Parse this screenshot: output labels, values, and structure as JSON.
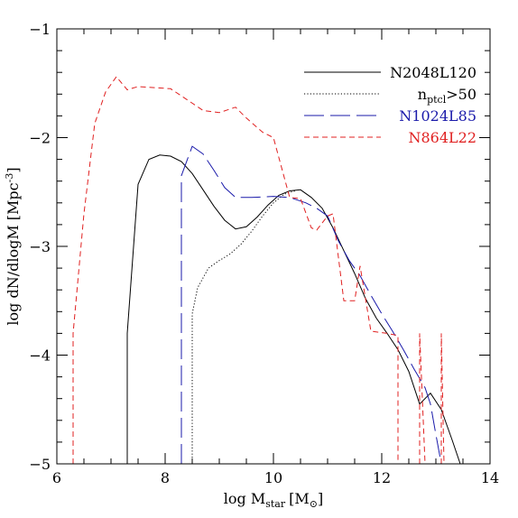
{
  "chart_data": {
    "type": "line",
    "title": "",
    "xlabel": "log M",
    "xlabel_sub": "star",
    "xlabel_unit_open": "[M",
    "xlabel_unit_sub": "⊙",
    "xlabel_unit_close": "]",
    "ylabel": "log dN/dlogM [Mpc",
    "ylabel_sup": "-3",
    "ylabel_close": "]",
    "xlim": [
      6,
      14
    ],
    "ylim": [
      -5,
      -1
    ],
    "xticks": [
      6,
      8,
      10,
      12,
      14
    ],
    "yticks": [
      -1,
      -2,
      -3,
      -4,
      -5
    ],
    "xtick_labels": [
      "6",
      "8",
      "10",
      "12",
      "14"
    ],
    "ytick_labels": [
      "−1",
      "−2",
      "−3",
      "−4",
      "−5"
    ],
    "grid": false,
    "legend_placement": "top-right",
    "legend": [
      {
        "label": "N2048L120",
        "label_sub": "",
        "label_tail": "",
        "color": "#000000",
        "dash": "solid"
      },
      {
        "label": "n",
        "label_sub": "ptcl",
        "label_tail": ">50",
        "color": "#000000",
        "dash": "dotted"
      },
      {
        "label": "N1024L85",
        "label_sub": "",
        "label_tail": "",
        "color": "#1a1aaa",
        "dash": "longdash"
      },
      {
        "label": "N864L22",
        "label_sub": "",
        "label_tail": "",
        "color": "#e02020",
        "dash": "shortdash"
      }
    ],
    "series": [
      {
        "name": "N2048L120",
        "color": "#000000",
        "dash": "solid",
        "points": [
          [
            7.3,
            -5.0
          ],
          [
            7.3,
            -3.8
          ],
          [
            7.5,
            -2.43
          ],
          [
            7.7,
            -2.2
          ],
          [
            7.9,
            -2.16
          ],
          [
            8.1,
            -2.17
          ],
          [
            8.3,
            -2.22
          ],
          [
            8.5,
            -2.33
          ],
          [
            8.7,
            -2.48
          ],
          [
            8.9,
            -2.63
          ],
          [
            9.1,
            -2.76
          ],
          [
            9.3,
            -2.84
          ],
          [
            9.5,
            -2.82
          ],
          [
            9.7,
            -2.73
          ],
          [
            9.9,
            -2.62
          ],
          [
            10.1,
            -2.53
          ],
          [
            10.3,
            -2.49
          ],
          [
            10.5,
            -2.48
          ],
          [
            10.7,
            -2.55
          ],
          [
            10.9,
            -2.65
          ],
          [
            11.1,
            -2.83
          ],
          [
            11.3,
            -3.04
          ],
          [
            11.5,
            -3.25
          ],
          [
            11.7,
            -3.48
          ],
          [
            11.9,
            -3.66
          ],
          [
            12.1,
            -3.8
          ],
          [
            12.3,
            -3.95
          ],
          [
            12.5,
            -4.15
          ],
          [
            12.7,
            -4.45
          ],
          [
            12.9,
            -4.35
          ],
          [
            13.1,
            -4.5
          ],
          [
            13.3,
            -4.78
          ],
          [
            13.45,
            -5.0
          ]
        ]
      },
      {
        "name": "",
        "color": "#000000",
        "dash": "dotted",
        "points": [
          [
            8.5,
            -5.0
          ],
          [
            8.5,
            -3.62
          ],
          [
            8.6,
            -3.38
          ],
          [
            8.8,
            -3.2
          ],
          [
            9.0,
            -3.13
          ],
          [
            9.2,
            -3.07
          ],
          [
            9.4,
            -2.98
          ],
          [
            9.6,
            -2.86
          ],
          [
            9.8,
            -2.72
          ],
          [
            10.0,
            -2.6
          ],
          [
            10.2,
            -2.52
          ],
          [
            10.4,
            -2.49
          ]
        ]
      },
      {
        "name": "N1024L85",
        "color": "#1a1aaa",
        "dash": "longdash",
        "points": [
          [
            8.3,
            -5.0
          ],
          [
            8.3,
            -2.35
          ],
          [
            8.5,
            -2.08
          ],
          [
            8.7,
            -2.15
          ],
          [
            8.9,
            -2.3
          ],
          [
            9.1,
            -2.46
          ],
          [
            9.3,
            -2.55
          ],
          [
            9.6,
            -2.55
          ],
          [
            10.0,
            -2.54
          ],
          [
            10.3,
            -2.55
          ],
          [
            10.6,
            -2.6
          ],
          [
            10.8,
            -2.65
          ],
          [
            11.0,
            -2.72
          ],
          [
            11.2,
            -2.95
          ],
          [
            11.4,
            -3.13
          ],
          [
            11.6,
            -3.27
          ],
          [
            11.8,
            -3.45
          ],
          [
            12.0,
            -3.62
          ],
          [
            12.2,
            -3.78
          ],
          [
            12.4,
            -3.95
          ],
          [
            12.6,
            -4.13
          ],
          [
            12.8,
            -4.3
          ],
          [
            12.9,
            -4.45
          ],
          [
            13.0,
            -4.73
          ],
          [
            13.1,
            -5.0
          ]
        ]
      },
      {
        "name": "N864L22",
        "color": "#e02020",
        "dash": "shortdash",
        "points": [
          [
            6.3,
            -5.0
          ],
          [
            6.3,
            -3.8
          ],
          [
            6.5,
            -2.7
          ],
          [
            6.7,
            -1.87
          ],
          [
            6.9,
            -1.58
          ],
          [
            7.1,
            -1.44
          ],
          [
            7.3,
            -1.56
          ],
          [
            7.5,
            -1.53
          ],
          [
            7.8,
            -1.54
          ],
          [
            8.1,
            -1.55
          ],
          [
            8.4,
            -1.65
          ],
          [
            8.7,
            -1.75
          ],
          [
            9.0,
            -1.77
          ],
          [
            9.3,
            -1.72
          ],
          [
            9.5,
            -1.82
          ],
          [
            9.8,
            -1.95
          ],
          [
            10.0,
            -2.0
          ],
          [
            10.3,
            -2.55
          ],
          [
            10.5,
            -2.56
          ],
          [
            10.7,
            -2.83
          ],
          [
            10.8,
            -2.85
          ],
          [
            11.0,
            -2.72
          ],
          [
            11.1,
            -2.7
          ],
          [
            11.3,
            -3.5
          ],
          [
            11.5,
            -3.5
          ],
          [
            11.6,
            -3.18
          ],
          [
            11.8,
            -3.78
          ],
          [
            12.1,
            -3.8
          ],
          [
            12.3,
            -3.82
          ],
          [
            12.3,
            -5.0
          ]
        ]
      },
      {
        "name": "",
        "color": "#e02020",
        "dash": "shortdash",
        "points": [
          [
            12.7,
            -5.0
          ],
          [
            12.7,
            -3.8
          ],
          [
            12.8,
            -5.0
          ]
        ]
      },
      {
        "name": "",
        "color": "#e02020",
        "dash": "shortdash",
        "points": [
          [
            13.1,
            -5.0
          ],
          [
            13.1,
            -3.8
          ],
          [
            13.15,
            -5.0
          ]
        ]
      }
    ]
  }
}
